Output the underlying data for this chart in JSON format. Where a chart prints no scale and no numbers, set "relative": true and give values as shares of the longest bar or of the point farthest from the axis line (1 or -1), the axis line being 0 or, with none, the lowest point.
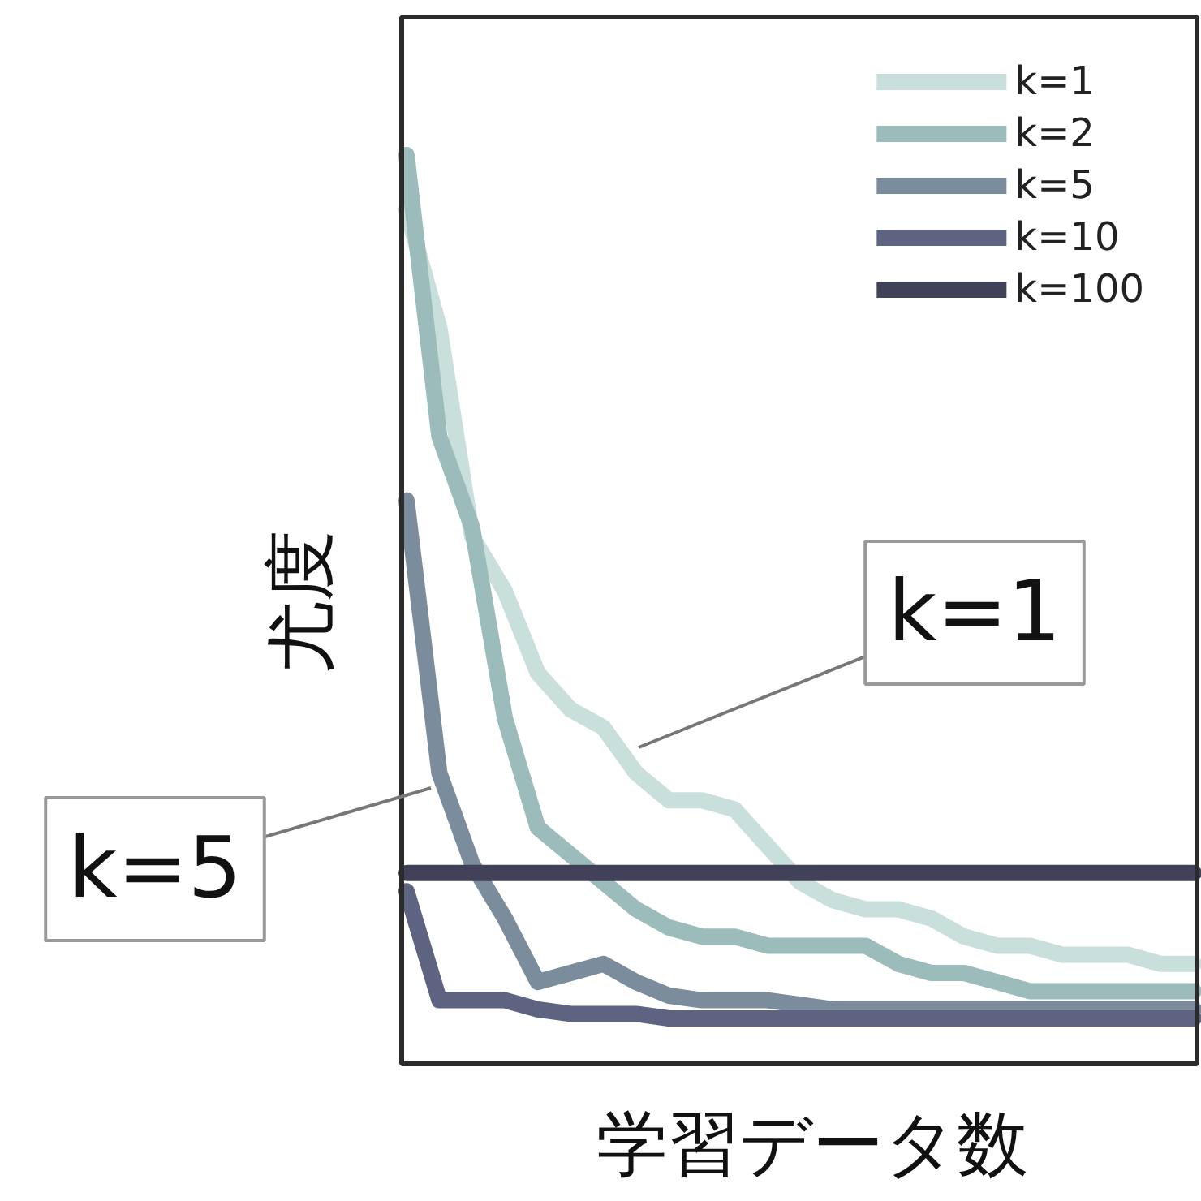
{
  "chart_data": {
    "type": "line",
    "relative": true,
    "xlabel": "学習データ数",
    "ylabel": "尤度",
    "categories": [
      null,
      null,
      null,
      null,
      null,
      null,
      null,
      null,
      null,
      null,
      null,
      null,
      null,
      null,
      null,
      null,
      null,
      null,
      null,
      null,
      null,
      null,
      null,
      null,
      null
    ],
    "series": [
      {
        "name": "k=1",
        "color": "#c9dfdc",
        "values": [
          0.94,
          0.81,
          0.58,
          0.52,
          0.43,
          0.39,
          0.37,
          0.32,
          0.29,
          0.29,
          0.28,
          0.24,
          0.2,
          0.18,
          0.17,
          0.17,
          0.16,
          0.14,
          0.13,
          0.13,
          0.12,
          0.12,
          0.12,
          0.11,
          0.11
        ]
      },
      {
        "name": "k=2",
        "color": "#9cbcbc",
        "values": [
          1.0,
          0.69,
          0.59,
          0.38,
          0.26,
          0.23,
          0.2,
          0.17,
          0.15,
          0.14,
          0.14,
          0.13,
          0.13,
          0.13,
          0.13,
          0.11,
          0.1,
          0.1,
          0.09,
          0.08,
          0.08,
          0.08,
          0.08,
          0.08,
          0.08
        ]
      },
      {
        "name": "k=5",
        "color": "#7b8d9c",
        "values": [
          0.62,
          0.32,
          0.22,
          0.16,
          0.09,
          0.1,
          0.11,
          0.09,
          0.075,
          0.07,
          0.07,
          0.07,
          0.065,
          0.06,
          0.06,
          0.06,
          0.06,
          0.06,
          0.06,
          0.06,
          0.06,
          0.06,
          0.06,
          0.06,
          0.06
        ]
      },
      {
        "name": "k=10",
        "color": "#5d6380",
        "values": [
          0.19,
          0.07,
          0.07,
          0.07,
          0.06,
          0.055,
          0.055,
          0.055,
          0.05,
          0.05,
          0.05,
          0.05,
          0.05,
          0.05,
          0.05,
          0.05,
          0.05,
          0.05,
          0.05,
          0.05,
          0.05,
          0.05,
          0.05,
          0.05,
          0.05
        ]
      },
      {
        "name": "k=100",
        "color": "#414159",
        "values": [
          0.21,
          0.21,
          0.21,
          0.21,
          0.21,
          0.21,
          0.21,
          0.21,
          0.21,
          0.21,
          0.21,
          0.21,
          0.21,
          0.21,
          0.21,
          0.21,
          0.21,
          0.21,
          0.21,
          0.21,
          0.21,
          0.21,
          0.21,
          0.21,
          0.21
        ]
      }
    ],
    "annotations": [
      "k=1",
      "k=5"
    ],
    "legend": "top right",
    "grid": false,
    "tick_labels": false,
    "line_style": "solid",
    "marker": "none"
  }
}
